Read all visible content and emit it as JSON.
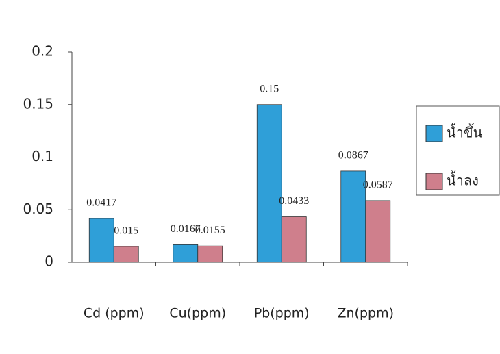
{
  "chart_data": {
    "type": "bar",
    "categories": [
      "Cd (ppm)",
      "Cu(ppm)",
      "Pb(ppm)",
      "Zn(ppm)"
    ],
    "series": [
      {
        "name": "น้ำขึ้น",
        "color": "#2f9fd8",
        "values": [
          0.0417,
          0.0167,
          0.15,
          0.0867
        ]
      },
      {
        "name": "น้ำลง",
        "color": "#cf7f8c",
        "values": [
          0.015,
          0.0155,
          0.0433,
          0.0587
        ]
      }
    ],
    "ylim": [
      0,
      0.2
    ],
    "yticks": [
      0,
      0.05,
      0.1,
      0.15,
      0.2
    ],
    "grid": false,
    "legend": "right"
  }
}
